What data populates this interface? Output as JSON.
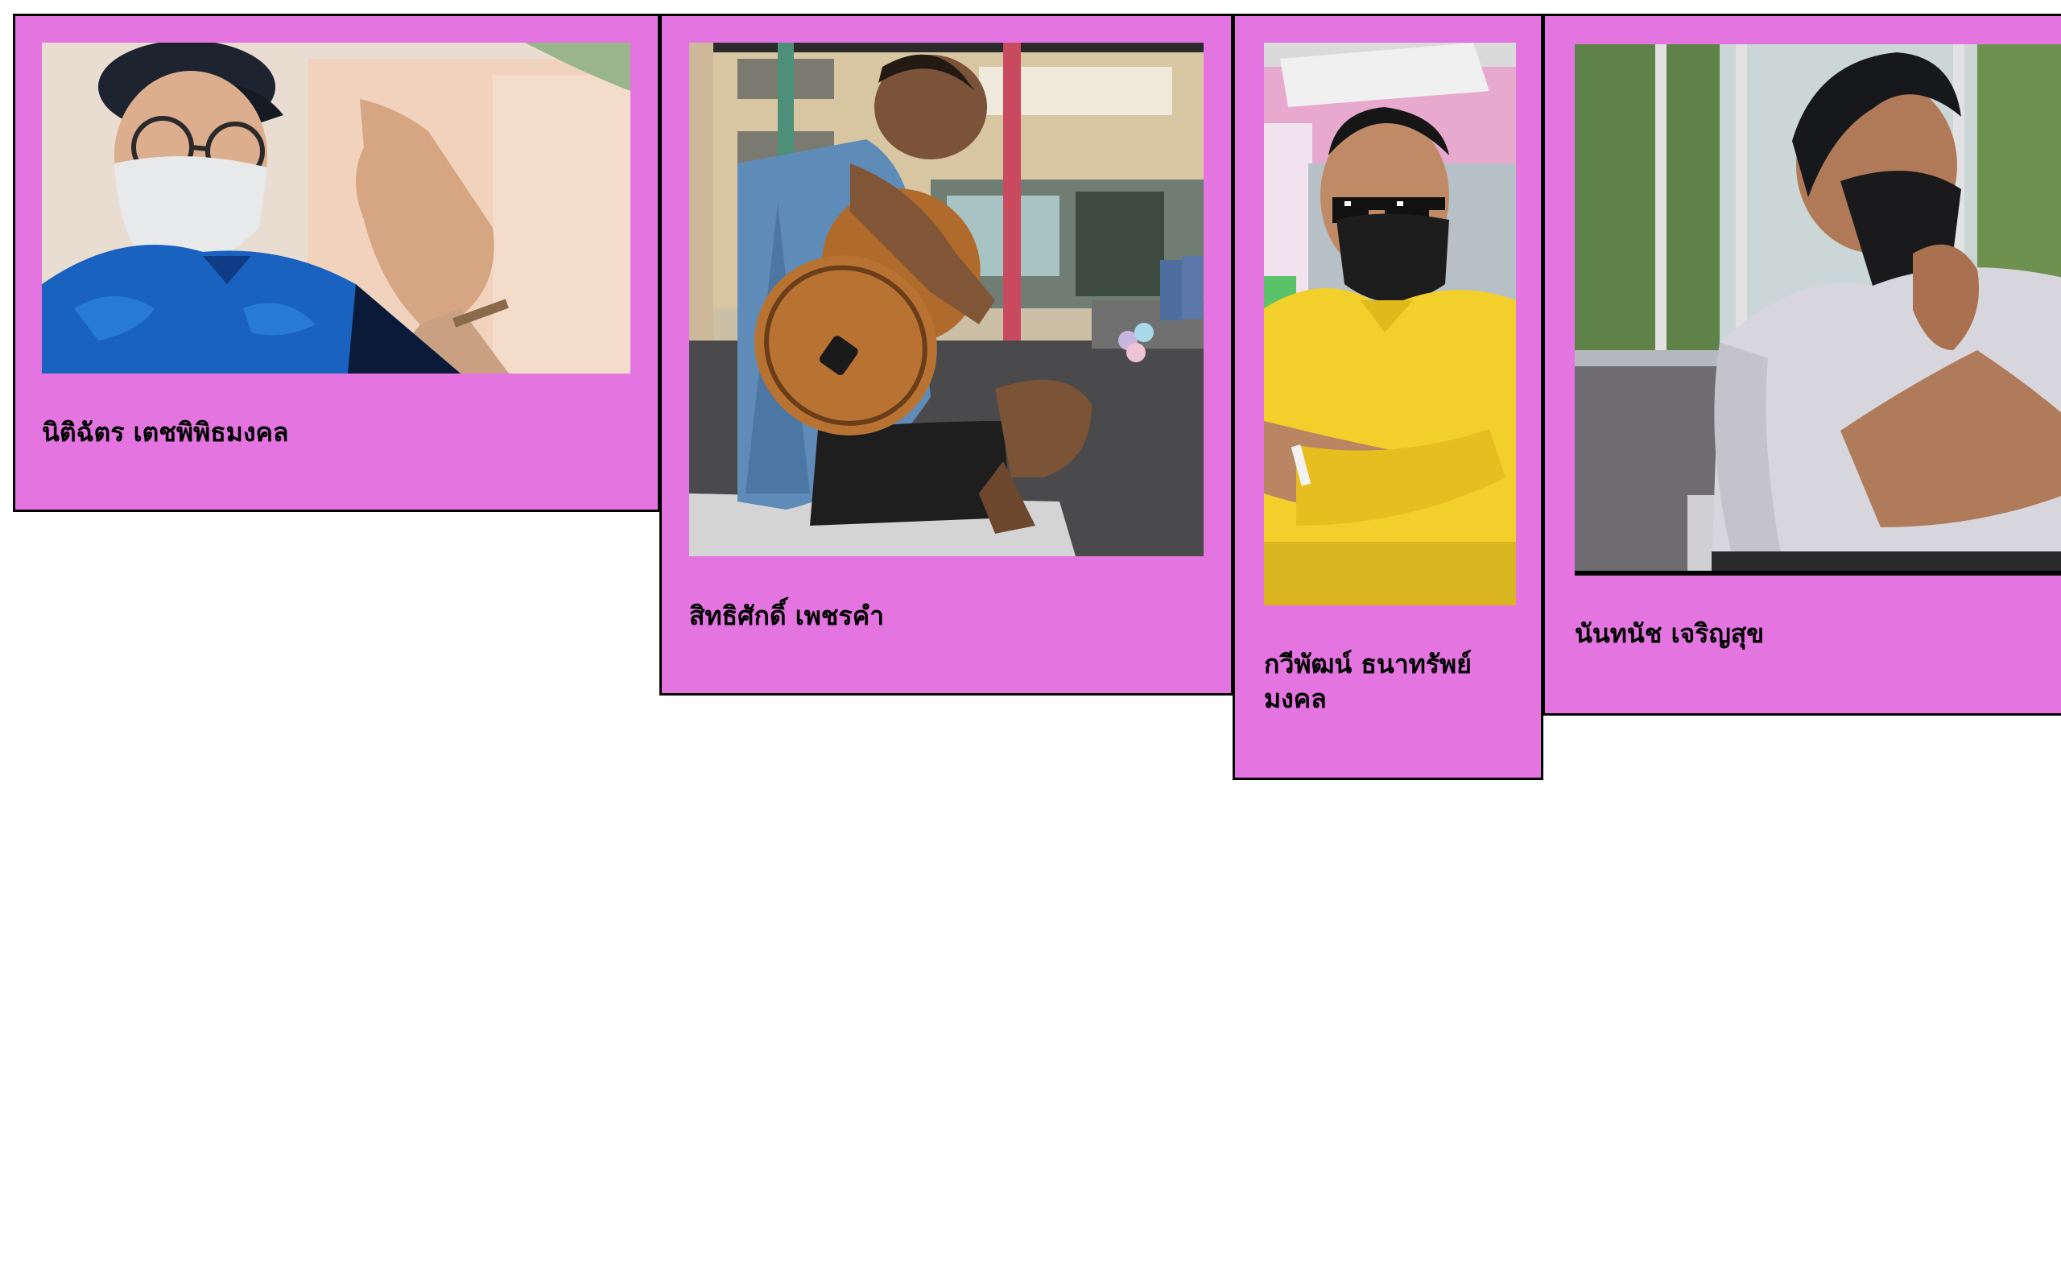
{
  "page": {
    "background": "#ffffff",
    "card_background": "#e374e0",
    "card_border_color": "#000000"
  },
  "cards": [
    {
      "name": "นิติฉัตร เตชพิพิธมงคล",
      "photo": "person-selfie-cap-glasses-mask-photo"
    },
    {
      "name": "สิทธิศักดิ์ เพชรคำ",
      "photo": "person-playing-guitar-photo"
    },
    {
      "name": "กวีพัฒน์ ธนาทรัพย์มงคล",
      "photo": "person-yellow-shirt-sunglasses-photo"
    },
    {
      "name": "นันทนัช เจริญสุข",
      "photo": "person-white-shirt-mask-photo"
    }
  ]
}
